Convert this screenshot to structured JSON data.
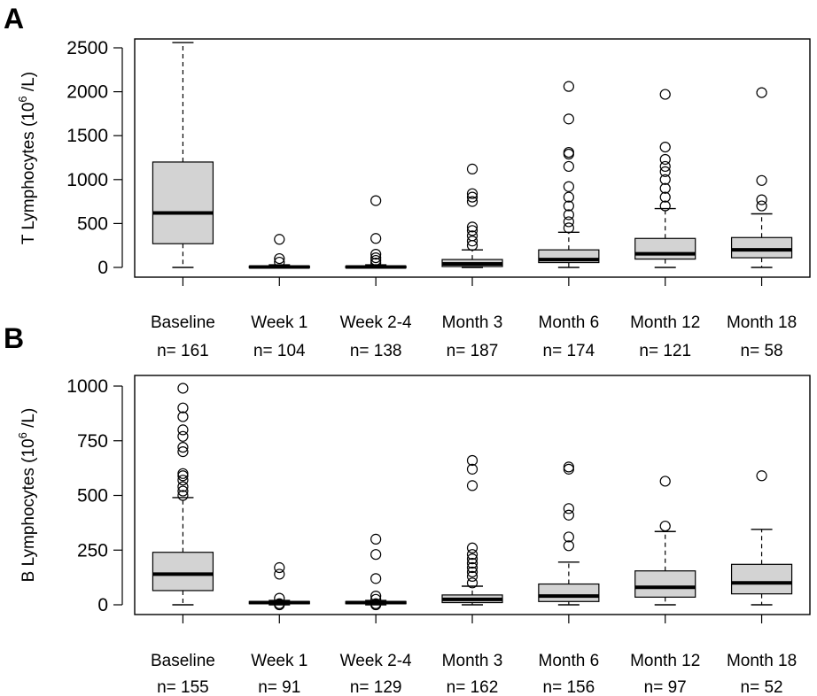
{
  "chart_data": [
    {
      "type": "boxplot",
      "panel_label": "A",
      "ylabel_main": "T Lymphocytes (10",
      "ylabel_sup": "6",
      "ylabel_unit": " /L)",
      "ylim": [
        0,
        2500
      ],
      "yticks": [
        0,
        500,
        1000,
        1500,
        2000,
        2500
      ],
      "ytick_labels": [
        "0",
        "500",
        "1000",
        "1500",
        "2000",
        "2500"
      ],
      "grid": false,
      "categories": [
        "Baseline",
        "Week 1",
        "Week 2-4",
        "Month 3",
        "Month 6",
        "Month 12",
        "Month 18"
      ],
      "n_labels": [
        "n= 161",
        "n= 104",
        "n= 138",
        "n= 187",
        "n= 174",
        "n= 121",
        "n= 58"
      ],
      "boxes": [
        {
          "low": 0,
          "q1": 270,
          "median": 620,
          "q3": 1200,
          "high": 2560,
          "outliers": []
        },
        {
          "low": 0,
          "q1": 0,
          "median": 5,
          "q3": 15,
          "high": 30,
          "outliers": [
            60,
            100,
            320
          ]
        },
        {
          "low": 0,
          "q1": 0,
          "median": 5,
          "q3": 15,
          "high": 30,
          "outliers": [
            50,
            80,
            110,
            150,
            330,
            760
          ]
        },
        {
          "low": 0,
          "q1": 10,
          "median": 40,
          "q3": 90,
          "high": 200,
          "outliers": [
            250,
            300,
            360,
            420,
            460,
            750,
            800,
            840,
            1120
          ]
        },
        {
          "low": 0,
          "q1": 55,
          "median": 90,
          "q3": 200,
          "high": 400,
          "outliers": [
            450,
            520,
            600,
            700,
            800,
            920,
            1150,
            1290,
            1310,
            1690,
            2060
          ]
        },
        {
          "low": 0,
          "q1": 95,
          "median": 155,
          "q3": 330,
          "high": 670,
          "outliers": [
            700,
            800,
            900,
            1000,
            1090,
            1150,
            1230,
            1370,
            1970
          ]
        },
        {
          "low": 0,
          "q1": 110,
          "median": 200,
          "q3": 340,
          "high": 610,
          "outliers": [
            700,
            770,
            990,
            1990
          ]
        }
      ]
    },
    {
      "type": "boxplot",
      "panel_label": "B",
      "ylabel_main": "B Lymphocytes (10",
      "ylabel_sup": "6",
      "ylabel_unit": " /L)",
      "ylim": [
        0,
        1000
      ],
      "yticks": [
        0,
        250,
        500,
        750,
        1000
      ],
      "ytick_labels": [
        "0",
        "250",
        "500",
        "750",
        "1000"
      ],
      "grid": false,
      "categories": [
        "Baseline",
        "Week 1",
        "Week 2-4",
        "Month 3",
        "Month 6",
        "Month 12",
        "Month 18"
      ],
      "n_labels": [
        "n= 155",
        "n= 91",
        "n= 129",
        "n= 162",
        "n= 156",
        "n= 97",
        "n= 52"
      ],
      "boxes": [
        {
          "low": 0,
          "q1": 65,
          "median": 140,
          "q3": 240,
          "high": 490,
          "outliers": [
            500,
            520,
            540,
            570,
            590,
            600,
            700,
            720,
            770,
            800,
            860,
            900,
            990
          ]
        },
        {
          "low": 0,
          "q1": 5,
          "median": 10,
          "q3": 15,
          "high": 20,
          "outliers": [
            0,
            5,
            30,
            140,
            170
          ]
        },
        {
          "low": 0,
          "q1": 5,
          "median": 10,
          "q3": 15,
          "high": 20,
          "outliers": [
            0,
            5,
            25,
            40,
            120,
            230,
            300
          ]
        },
        {
          "low": 0,
          "q1": 10,
          "median": 25,
          "q3": 45,
          "high": 85,
          "outliers": [
            100,
            130,
            150,
            170,
            190,
            210,
            230,
            260,
            545,
            620,
            660
          ]
        },
        {
          "low": 0,
          "q1": 15,
          "median": 40,
          "q3": 95,
          "high": 195,
          "outliers": [
            270,
            310,
            410,
            440,
            620,
            630
          ]
        },
        {
          "low": 0,
          "q1": 35,
          "median": 80,
          "q3": 155,
          "high": 335,
          "outliers": [
            360,
            565
          ]
        },
        {
          "low": 0,
          "q1": 50,
          "median": 100,
          "q3": 185,
          "high": 345,
          "outliers": [
            590
          ]
        }
      ]
    }
  ]
}
